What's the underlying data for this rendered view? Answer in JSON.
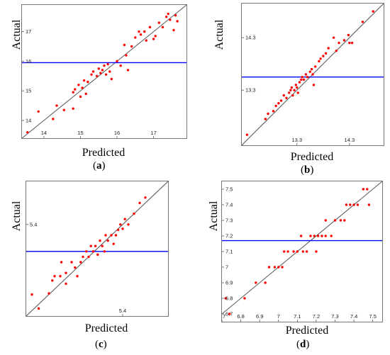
{
  "colors": {
    "points": "#ff0000",
    "mean_line": "#0000ff",
    "fit_line": "#555555"
  },
  "chart_data": [
    {
      "type": "scatter",
      "panel_label": "a",
      "xlabel": "Predicted",
      "ylabel": "Actual",
      "xlim": [
        13.4,
        17.9
      ],
      "ylim": [
        13.4,
        17.9
      ],
      "xticks": [
        "14",
        "15",
        "16",
        "17"
      ],
      "yticks": [
        "14",
        "15",
        "16",
        "17"
      ],
      "mean_line_y": 15.95,
      "points": [
        [
          13.55,
          13.6
        ],
        [
          13.85,
          14.3
        ],
        [
          14.25,
          14.05
        ],
        [
          14.35,
          14.5
        ],
        [
          14.55,
          14.35
        ],
        [
          14.8,
          14.4
        ],
        [
          14.8,
          14.95
        ],
        [
          14.85,
          15.05
        ],
        [
          14.95,
          15.2
        ],
        [
          15.0,
          14.8
        ],
        [
          15.05,
          15.1
        ],
        [
          15.1,
          15.35
        ],
        [
          15.15,
          14.9
        ],
        [
          15.2,
          15.3
        ],
        [
          15.3,
          15.55
        ],
        [
          15.35,
          15.65
        ],
        [
          15.45,
          15.5
        ],
        [
          15.5,
          15.75
        ],
        [
          15.55,
          15.6
        ],
        [
          15.6,
          15.7
        ],
        [
          15.65,
          15.85
        ],
        [
          15.7,
          15.55
        ],
        [
          15.75,
          15.9
        ],
        [
          15.8,
          15.65
        ],
        [
          15.85,
          15.4
        ],
        [
          16.0,
          16.0
        ],
        [
          16.1,
          15.85
        ],
        [
          16.2,
          16.55
        ],
        [
          16.25,
          16.2
        ],
        [
          16.3,
          15.7
        ],
        [
          16.4,
          16.5
        ],
        [
          16.5,
          16.8
        ],
        [
          16.6,
          17.0
        ],
        [
          16.65,
          16.9
        ],
        [
          16.75,
          17.0
        ],
        [
          16.8,
          16.7
        ],
        [
          16.9,
          17.15
        ],
        [
          17.0,
          16.75
        ],
        [
          17.05,
          16.85
        ],
        [
          17.15,
          17.3
        ],
        [
          17.25,
          17.15
        ],
        [
          17.35,
          17.5
        ],
        [
          17.4,
          17.6
        ],
        [
          17.45,
          17.4
        ],
        [
          17.55,
          17.05
        ],
        [
          17.6,
          17.55
        ],
        [
          17.65,
          17.35
        ]
      ]
    },
    {
      "type": "scatter",
      "panel_label": "b",
      "xlabel": "Predicted",
      "ylabel": "Actual",
      "xlim": [
        12.25,
        14.95
      ],
      "ylim": [
        12.25,
        14.95
      ],
      "xticks": [
        "13.3",
        "14.3"
      ],
      "yticks": [
        "13.3",
        "14.3"
      ],
      "mean_line_y": 13.55,
      "points": [
        [
          12.35,
          12.45
        ],
        [
          12.7,
          12.75
        ],
        [
          12.75,
          12.85
        ],
        [
          12.85,
          12.9
        ],
        [
          12.9,
          13.0
        ],
        [
          12.95,
          13.05
        ],
        [
          13.0,
          13.1
        ],
        [
          13.05,
          13.2
        ],
        [
          13.1,
          13.15
        ],
        [
          13.15,
          13.25
        ],
        [
          13.18,
          13.3
        ],
        [
          13.2,
          13.35
        ],
        [
          13.22,
          13.2
        ],
        [
          13.25,
          13.3
        ],
        [
          13.28,
          13.4
        ],
        [
          13.3,
          13.35
        ],
        [
          13.32,
          13.25
        ],
        [
          13.35,
          13.45
        ],
        [
          13.38,
          13.5
        ],
        [
          13.4,
          13.55
        ],
        [
          13.43,
          13.5
        ],
        [
          13.47,
          13.6
        ],
        [
          13.5,
          13.55
        ],
        [
          13.55,
          13.65
        ],
        [
          13.58,
          13.7
        ],
        [
          13.6,
          13.6
        ],
        [
          13.62,
          13.4
        ],
        [
          13.65,
          13.75
        ],
        [
          13.72,
          13.85
        ],
        [
          13.75,
          13.9
        ],
        [
          13.8,
          13.95
        ],
        [
          13.85,
          14.0
        ],
        [
          13.9,
          14.1
        ],
        [
          14.0,
          14.3
        ],
        [
          14.05,
          14.05
        ],
        [
          14.1,
          14.2
        ],
        [
          14.2,
          14.25
        ],
        [
          14.28,
          14.35
        ],
        [
          14.3,
          14.2
        ],
        [
          14.35,
          14.2
        ],
        [
          14.55,
          14.6
        ],
        [
          14.75,
          14.8
        ]
      ]
    },
    {
      "type": "scatter",
      "panel_label": "c",
      "xlabel": "Predicted",
      "ylabel": "Actual",
      "xlim": [
        4.55,
        5.8
      ],
      "ylim": [
        4.55,
        5.8
      ],
      "xticks": [
        "5.4"
      ],
      "yticks": [
        "5.4"
      ],
      "mean_line_y": 5.15,
      "points": [
        [
          4.6,
          4.75
        ],
        [
          4.66,
          4.62
        ],
        [
          4.75,
          4.76
        ],
        [
          4.78,
          4.88
        ],
        [
          4.8,
          4.92
        ],
        [
          4.85,
          4.92
        ],
        [
          4.86,
          5.05
        ],
        [
          4.9,
          4.85
        ],
        [
          4.9,
          4.95
        ],
        [
          4.95,
          5.05
        ],
        [
          4.98,
          5.0
        ],
        [
          5.0,
          4.92
        ],
        [
          5.03,
          5.05
        ],
        [
          5.05,
          5.1
        ],
        [
          5.08,
          5.15
        ],
        [
          5.1,
          5.1
        ],
        [
          5.12,
          5.2
        ],
        [
          5.14,
          5.15
        ],
        [
          5.16,
          5.2
        ],
        [
          5.18,
          5.12
        ],
        [
          5.2,
          5.25
        ],
        [
          5.22,
          5.2
        ],
        [
          5.24,
          5.15
        ],
        [
          5.25,
          5.3
        ],
        [
          5.27,
          5.25
        ],
        [
          5.3,
          5.3
        ],
        [
          5.32,
          5.22
        ],
        [
          5.34,
          5.3
        ],
        [
          5.36,
          5.35
        ],
        [
          5.38,
          5.4
        ],
        [
          5.4,
          5.36
        ],
        [
          5.42,
          5.45
        ],
        [
          5.45,
          5.4
        ],
        [
          5.5,
          5.5
        ],
        [
          5.55,
          5.6
        ],
        [
          5.6,
          5.65
        ]
      ]
    },
    {
      "type": "scatter",
      "panel_label": "d",
      "xlabel": "Predicted",
      "ylabel": "Actual",
      "xlim": [
        6.7,
        7.55
      ],
      "ylim": [
        6.65,
        7.55
      ],
      "xticks": [
        "6.7",
        "6.8",
        "6.9",
        "7",
        "7.1",
        "7.2",
        "7.3",
        "7.4",
        "7.5"
      ],
      "yticks": [
        "6.7",
        "6.8",
        "6.9",
        "7",
        "7.1",
        "7.2",
        "7.3",
        "7.4",
        "7.5"
      ],
      "mean_line_y": 7.17,
      "points": [
        [
          6.72,
          6.8
        ],
        [
          6.74,
          6.7
        ],
        [
          6.82,
          6.8
        ],
        [
          6.88,
          6.9
        ],
        [
          6.93,
          6.9
        ],
        [
          6.95,
          7.0
        ],
        [
          6.98,
          7.0
        ],
        [
          7.0,
          7.0
        ],
        [
          7.02,
          7.0
        ],
        [
          7.03,
          7.1
        ],
        [
          7.05,
          7.1
        ],
        [
          7.08,
          7.1
        ],
        [
          7.1,
          7.1
        ],
        [
          7.12,
          7.2
        ],
        [
          7.13,
          7.1
        ],
        [
          7.15,
          7.1
        ],
        [
          7.17,
          7.2
        ],
        [
          7.19,
          7.2
        ],
        [
          7.2,
          7.1
        ],
        [
          7.21,
          7.2
        ],
        [
          7.23,
          7.2
        ],
        [
          7.25,
          7.3
        ],
        [
          7.25,
          7.2
        ],
        [
          7.28,
          7.2
        ],
        [
          7.3,
          7.3
        ],
        [
          7.33,
          7.3
        ],
        [
          7.35,
          7.3
        ],
        [
          7.36,
          7.4
        ],
        [
          7.38,
          7.4
        ],
        [
          7.4,
          7.4
        ],
        [
          7.42,
          7.4
        ],
        [
          7.45,
          7.5
        ],
        [
          7.47,
          7.5
        ],
        [
          7.48,
          7.4
        ]
      ]
    }
  ]
}
